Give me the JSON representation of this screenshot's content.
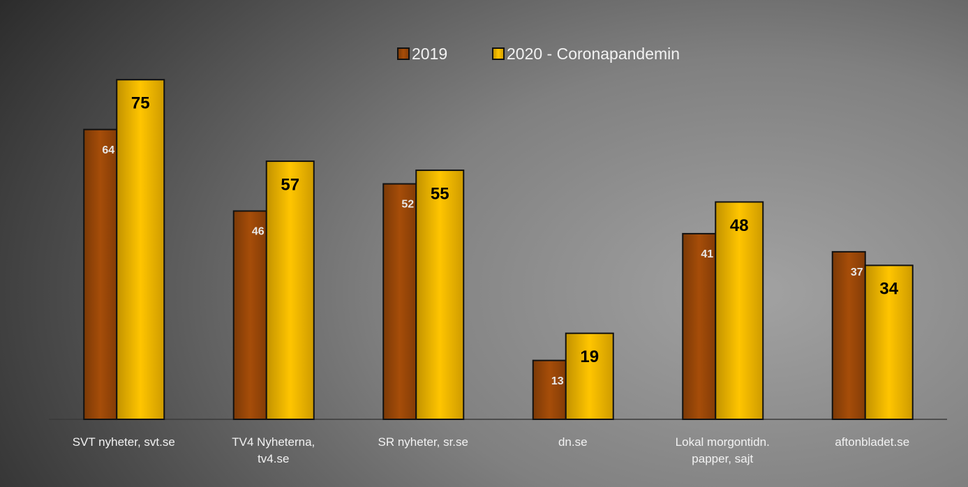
{
  "chart_data": {
    "type": "bar",
    "categories": [
      "SVT nyheter, svt.se",
      "TV4 Nyheterna,\ntv4.se",
      "SR nyheter, sr.se",
      "dn.se",
      "Lokal morgontidn.\npapper, sajt",
      "aftonbladet.se"
    ],
    "series": [
      {
        "name": "2019",
        "color": "#9a4708",
        "values": [
          64,
          46,
          52,
          13,
          41,
          37
        ]
      },
      {
        "name": "2020 - Coronapandemin",
        "color": "#f2b600",
        "values": [
          75,
          57,
          55,
          19,
          48,
          34
        ]
      }
    ],
    "ylim": [
      0,
      80
    ]
  }
}
